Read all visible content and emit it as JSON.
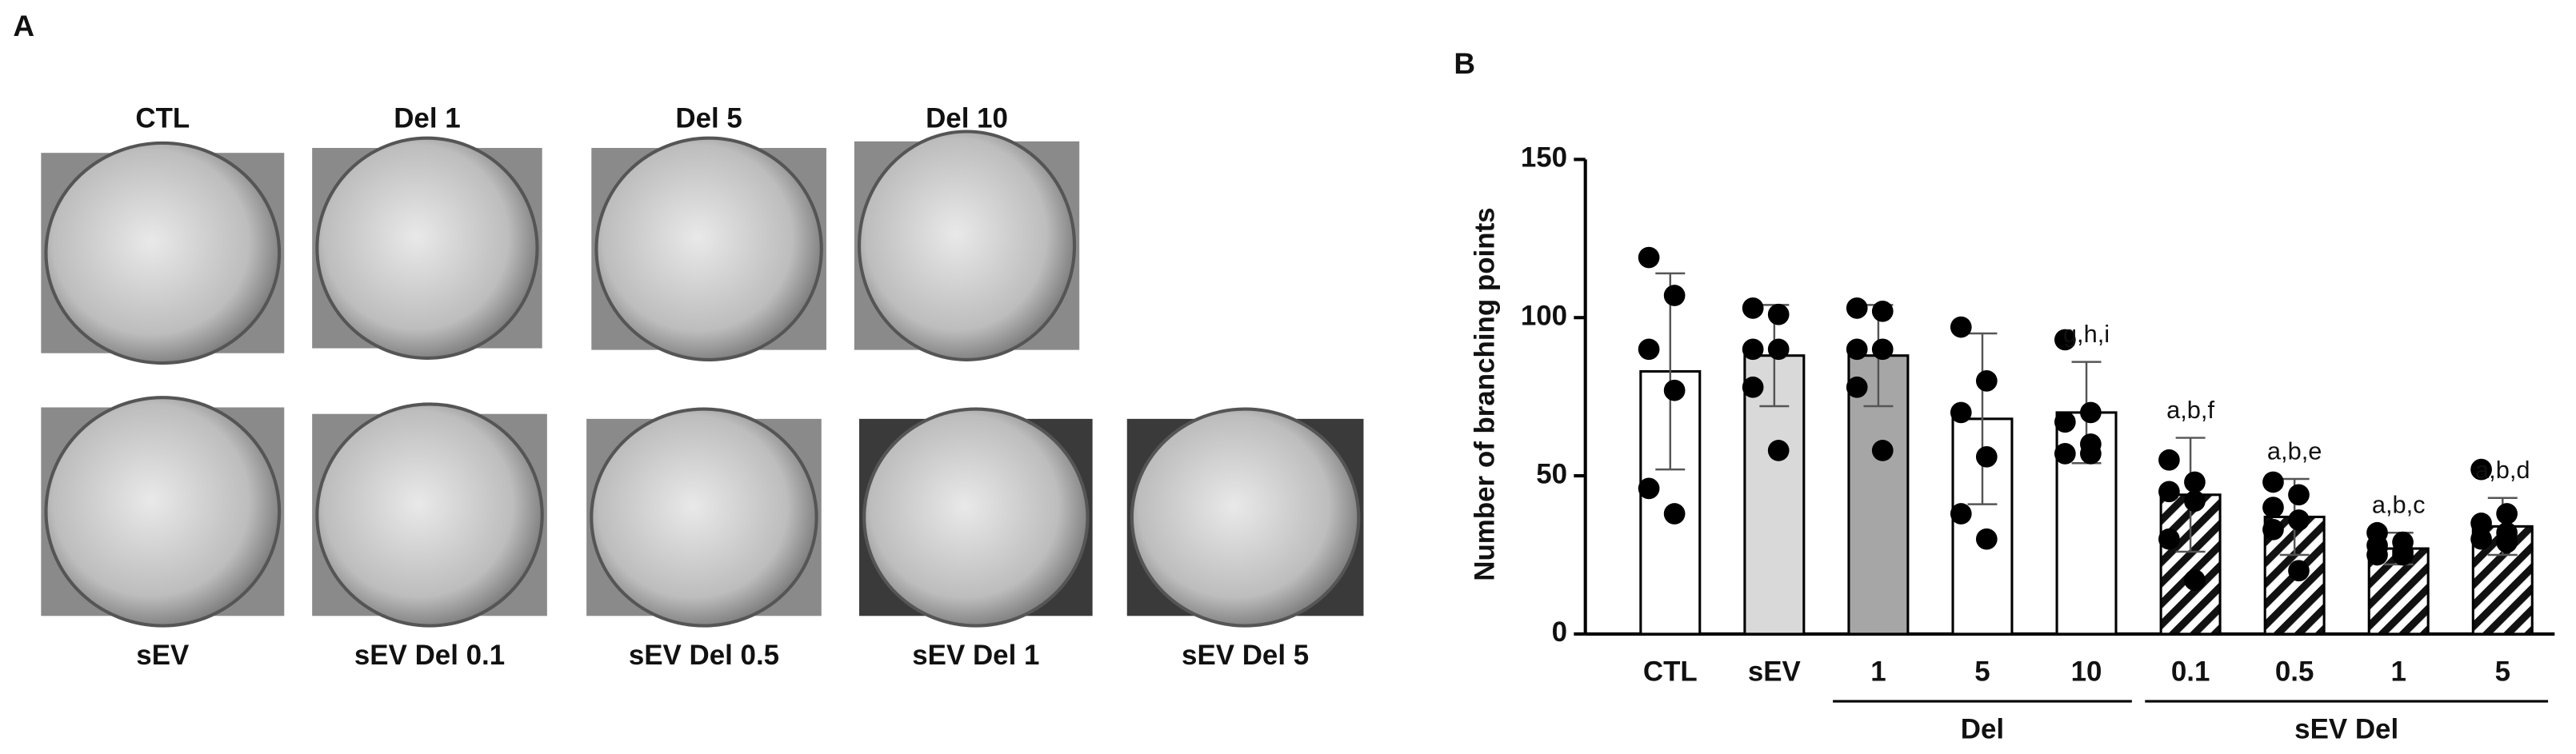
{
  "panel_labels": [
    "A",
    "B"
  ],
  "panel_a": {
    "top_row": [
      "CTL",
      "Del 1",
      "Del 5",
      "Del 10"
    ],
    "bottom_row": [
      "sEV",
      "sEV Del 0.1",
      "sEV Del 0.5",
      "sEV Del 1",
      "sEV Del 5"
    ]
  },
  "chart_data": {
    "type": "bar",
    "y_label": "Number of branching points",
    "categories": [
      "CTL",
      "sEV",
      "1",
      "5",
      "10",
      "0.1",
      "0.5",
      "1",
      "5"
    ],
    "group_labels": [
      null,
      null,
      "Del",
      "Del",
      "Del",
      "sEV Del",
      "sEV Del",
      "sEV Del",
      "sEV Del"
    ],
    "values": [
      83,
      88,
      88,
      68,
      70,
      44,
      37,
      27,
      34
    ],
    "errors": [
      31,
      16,
      16,
      27,
      16,
      18,
      12,
      5,
      9
    ],
    "points": [
      [
        119,
        107,
        90,
        77,
        46,
        38
      ],
      [
        103,
        101,
        90,
        90,
        78,
        58
      ],
      [
        103,
        102,
        90,
        90,
        78,
        58
      ],
      [
        97,
        80,
        70,
        56,
        38,
        30
      ],
      [
        93,
        70,
        67,
        60,
        57,
        57
      ],
      [
        55,
        48,
        45,
        42,
        30,
        17
      ],
      [
        48,
        44,
        40,
        36,
        33,
        20
      ],
      [
        32,
        29,
        28,
        26,
        25,
        25
      ],
      [
        52,
        38,
        35,
        32,
        30,
        29
      ]
    ],
    "annotations": [
      null,
      null,
      null,
      null,
      "g,h,i",
      "a,b,f",
      "a,b,e",
      "a,b,c",
      "a,b,d"
    ],
    "bar_colors": [
      "#ffffff",
      "#d9d9d9",
      "#a6a6a6",
      "#ffffff",
      "#ffffff",
      "#ffffff",
      "#ffffff",
      "#ffffff",
      "#ffffff"
    ],
    "hatched": [
      false,
      false,
      false,
      false,
      false,
      true,
      true,
      true,
      true
    ],
    "point_color": "#000000",
    "ylim": [
      0,
      150
    ],
    "yticks": [
      0,
      50,
      100,
      150
    ]
  }
}
